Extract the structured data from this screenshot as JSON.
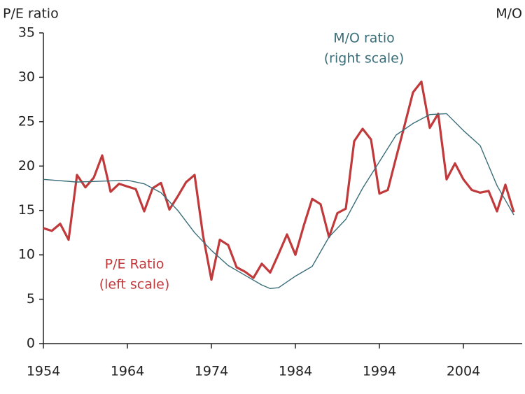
{
  "chart_data": {
    "type": "line",
    "ylabel": "P/E ratio",
    "y2label": "M/O",
    "xlim": [
      1954,
      2010
    ],
    "xticks": [
      1954,
      1964,
      1974,
      1984,
      1994,
      2004
    ],
    "ylim": [
      0,
      35
    ],
    "yticks": [
      0,
      5,
      10,
      15,
      20,
      25,
      30,
      35
    ],
    "series": [
      {
        "name": "P/E Ratio",
        "color": "#c0393b",
        "x": [
          1954,
          1955,
          1956,
          1957,
          1958,
          1959,
          1960,
          1961,
          1962,
          1963,
          1964,
          1965,
          1966,
          1967,
          1968,
          1969,
          1970,
          1971,
          1972,
          1973,
          1974,
          1975,
          1976,
          1977,
          1978,
          1979,
          1980,
          1981,
          1982,
          1983,
          1984,
          1985,
          1986,
          1987,
          1988,
          1989,
          1990,
          1991,
          1992,
          1993,
          1994,
          1995,
          1996,
          1997,
          1998,
          1999,
          2000,
          2001,
          2002,
          2003,
          2004,
          2005,
          2006,
          2007,
          2008,
          2009,
          2010
        ],
        "values": [
          13.0,
          12.7,
          13.5,
          11.7,
          19.0,
          17.6,
          18.7,
          21.2,
          17.1,
          18.0,
          17.7,
          17.4,
          14.9,
          17.5,
          18.1,
          15.1,
          16.6,
          18.2,
          19.0,
          12.2,
          7.2,
          11.7,
          11.1,
          8.6,
          8.1,
          7.4,
          9.0,
          8.0,
          10.1,
          12.3,
          10.0,
          13.3,
          16.3,
          15.7,
          12.0,
          14.7,
          15.2,
          22.8,
          24.2,
          23.0,
          16.9,
          17.3,
          21.0,
          24.6,
          28.3,
          29.5,
          24.3,
          25.9,
          18.5,
          20.3,
          18.5,
          17.3,
          17.0,
          17.2,
          14.9,
          17.9,
          14.8
        ]
      },
      {
        "name": "M/O ratio",
        "color": "#3a6e7a",
        "x": [
          1954,
          1958,
          1964,
          1966,
          1968,
          1970,
          1972,
          1974,
          1976,
          1978,
          1980,
          1981,
          1982,
          1984,
          1986,
          1988,
          1990,
          1992,
          1994,
          1996,
          1998,
          2000,
          2002,
          2004,
          2006,
          2008,
          2010
        ],
        "values": [
          18.5,
          18.2,
          18.4,
          18.0,
          17.0,
          15.0,
          12.5,
          10.5,
          8.8,
          7.7,
          6.6,
          6.2,
          6.3,
          7.6,
          8.7,
          12.0,
          14.0,
          17.5,
          20.5,
          23.5,
          24.8,
          25.8,
          25.9,
          24.0,
          22.3,
          17.8,
          14.5
        ]
      }
    ],
    "annotations": [
      {
        "lines": [
          "M/O ratio",
          "(right scale)"
        ],
        "color": "#3a6e7a"
      },
      {
        "lines": [
          "P/E Ratio",
          "(left scale)"
        ],
        "color": "#c0393b"
      }
    ]
  }
}
